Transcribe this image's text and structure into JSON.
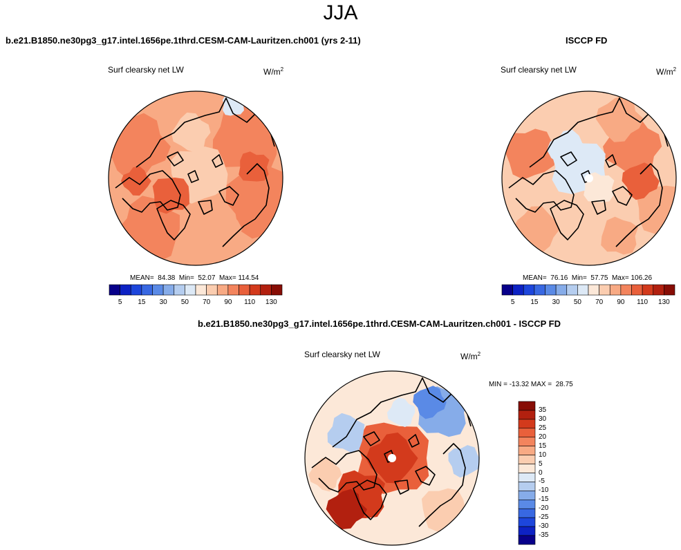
{
  "title": "JJA",
  "panels": [
    {
      "case_title": "b.e21.B1850.ne30pg3_g17.intel.1656pe.1thrd.CESM-CAM-Lauritzen.ch001 (yrs 2-11)",
      "variable": "Surf clearsky net LW",
      "units_base": "W/m",
      "units_exp": "2",
      "stats": "MEAN=  84.38  Min=  52.07  Max= 114.54"
    },
    {
      "case_title": "ISCCP FD",
      "variable": "Surf clearsky net LW",
      "units_base": "W/m",
      "units_exp": "2",
      "stats": "MEAN=  76.16  Min=  57.75  Max= 106.26"
    },
    {
      "case_title": "b.e21.B1850.ne30pg3_g17.intel.1656pe.1thrd.CESM-CAM-Lauritzen.ch001 - ISCCP FD",
      "variable": "Surf clearsky net LW",
      "units_base": "W/m",
      "units_exp": "2",
      "stats": "MIN = -13.32 MAX =  28.75"
    }
  ],
  "chart_data": [
    {
      "type": "heatmap",
      "projection": "north-polar-stereographic",
      "title": "Surf clearsky net LW",
      "units": "W/m2",
      "mean": 84.38,
      "min": 52.07,
      "max": 114.54,
      "colorbar": {
        "orientation": "horizontal",
        "levels": [
          5,
          10,
          15,
          20,
          30,
          40,
          50,
          60,
          70,
          80,
          90,
          100,
          110,
          120,
          130
        ],
        "tick_labels": [
          "5",
          "15",
          "30",
          "50",
          "70",
          "90",
          "110",
          "130"
        ],
        "colors": [
          "#08008a",
          "#0d22c4",
          "#1d46dc",
          "#3868e2",
          "#5a8ae6",
          "#86ace9",
          "#b5cdef",
          "#dde9f6",
          "#fce8d8",
          "#fbcdb0",
          "#f8aa84",
          "#f3845d",
          "#e9603b",
          "#d33a1c",
          "#b2200f",
          "#870d05"
        ]
      }
    },
    {
      "type": "heatmap",
      "projection": "north-polar-stereographic",
      "title": "Surf clearsky net LW",
      "units": "W/m2",
      "mean": 76.16,
      "min": 57.75,
      "max": 106.26,
      "colorbar": {
        "orientation": "horizontal",
        "levels": [
          5,
          10,
          15,
          20,
          30,
          40,
          50,
          60,
          70,
          80,
          90,
          100,
          110,
          120,
          130
        ],
        "tick_labels": [
          "5",
          "15",
          "30",
          "50",
          "70",
          "90",
          "110",
          "130"
        ],
        "colors": [
          "#08008a",
          "#0d22c4",
          "#1d46dc",
          "#3868e2",
          "#5a8ae6",
          "#86ace9",
          "#b5cdef",
          "#dde9f6",
          "#fce8d8",
          "#fbcdb0",
          "#f8aa84",
          "#f3845d",
          "#e9603b",
          "#d33a1c",
          "#b2200f",
          "#870d05"
        ]
      }
    },
    {
      "type": "heatmap",
      "projection": "north-polar-stereographic",
      "title": "Surf clearsky net LW",
      "units": "W/m2",
      "min": -13.32,
      "max": 28.75,
      "colorbar": {
        "orientation": "vertical",
        "levels": [
          -35,
          -30,
          -25,
          -20,
          -15,
          -10,
          -5,
          0,
          5,
          10,
          15,
          20,
          25,
          30,
          35
        ],
        "tick_labels": [
          "35",
          "30",
          "25",
          "20",
          "15",
          "10",
          "5",
          "0",
          "-5",
          "-10",
          "-15",
          "-20",
          "-25",
          "-30",
          "-35"
        ],
        "colors": [
          "#870d05",
          "#b2200f",
          "#d33a1c",
          "#e9603b",
          "#f3845d",
          "#f8aa84",
          "#fbcdb0",
          "#fce8d8",
          "#dde9f6",
          "#b5cdef",
          "#86ace9",
          "#5a8ae6",
          "#3868e2",
          "#1d46dc",
          "#0d22c4",
          "#08008a"
        ]
      }
    }
  ]
}
